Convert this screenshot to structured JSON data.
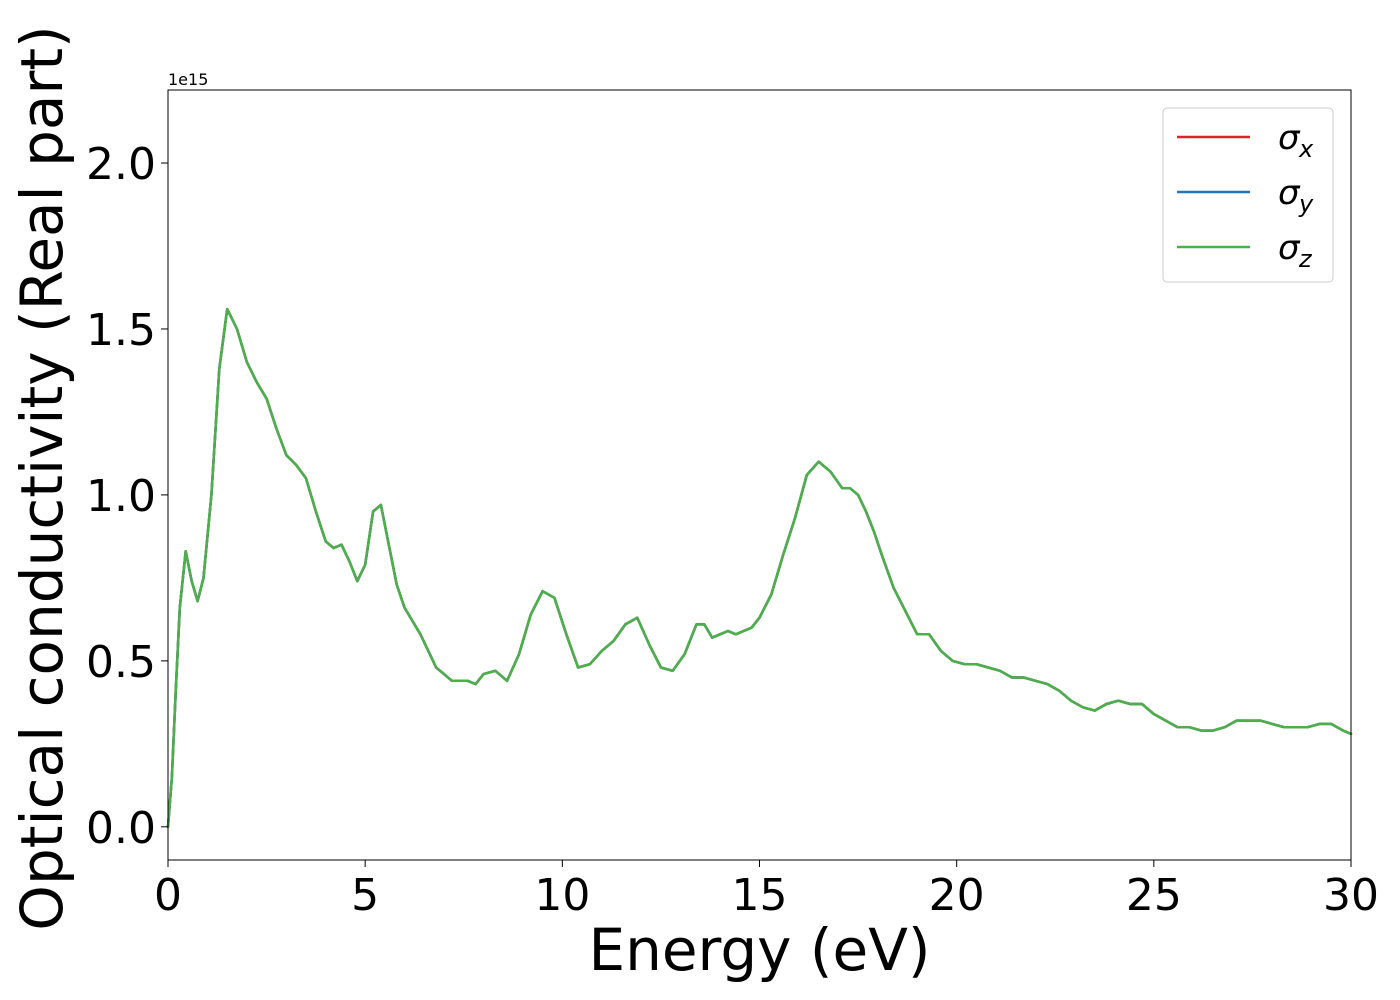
{
  "chart_data": {
    "type": "line",
    "title": "",
    "xlabel": "Energy (eV)",
    "ylabel": "Optical conductivity (Real part)",
    "y_offset_label": "1e15",
    "xlim": [
      0,
      30
    ],
    "ylim": [
      -0.1,
      2.22
    ],
    "xticks": [
      0,
      5,
      10,
      15,
      20,
      25,
      30
    ],
    "xtick_labels": [
      "0",
      "5",
      "10",
      "15",
      "20",
      "25",
      "30"
    ],
    "yticks": [
      0.0,
      0.5,
      1.0,
      1.5,
      2.0
    ],
    "ytick_labels": [
      "0.0",
      "0.5",
      "1.0",
      "1.5",
      "2.0"
    ],
    "grid": false,
    "legend_position": "top-right",
    "x": [
      0,
      0.1,
      0.2,
      0.3,
      0.45,
      0.6,
      0.75,
      0.9,
      1.1,
      1.3,
      1.5,
      1.75,
      2.0,
      2.25,
      2.5,
      2.75,
      3.0,
      3.25,
      3.5,
      3.75,
      4.0,
      4.2,
      4.4,
      4.6,
      4.8,
      5.0,
      5.2,
      5.4,
      5.6,
      5.8,
      6.0,
      6.2,
      6.4,
      6.6,
      6.8,
      7.0,
      7.2,
      7.4,
      7.6,
      7.8,
      8.0,
      8.3,
      8.6,
      8.9,
      9.2,
      9.5,
      9.8,
      10.1,
      10.4,
      10.7,
      11.0,
      11.3,
      11.6,
      11.9,
      12.2,
      12.5,
      12.8,
      13.1,
      13.4,
      13.6,
      13.8,
      14.0,
      14.2,
      14.4,
      14.6,
      14.8,
      15.0,
      15.3,
      15.6,
      15.9,
      16.2,
      16.5,
      16.8,
      17.1,
      17.3,
      17.5,
      17.7,
      17.9,
      18.1,
      18.4,
      18.7,
      19.0,
      19.3,
      19.6,
      19.9,
      20.2,
      20.5,
      20.8,
      21.1,
      21.4,
      21.7,
      22.0,
      22.3,
      22.6,
      22.9,
      23.2,
      23.5,
      23.8,
      24.1,
      24.4,
      24.7,
      25.0,
      25.3,
      25.6,
      25.9,
      26.2,
      26.5,
      26.8,
      27.1,
      27.4,
      27.7,
      28.0,
      28.3,
      28.6,
      28.9,
      29.2,
      29.5,
      29.8,
      30.0
    ],
    "series": [
      {
        "name": "σx",
        "symbol": "σ",
        "subscript": "x",
        "color": "#d62728",
        "values": [
          0.0,
          0.15,
          0.42,
          0.66,
          0.83,
          0.74,
          0.68,
          0.75,
          1.0,
          1.38,
          1.56,
          1.5,
          1.4,
          1.34,
          1.29,
          1.2,
          1.12,
          1.09,
          1.05,
          0.95,
          0.86,
          0.84,
          0.85,
          0.8,
          0.74,
          0.79,
          0.95,
          0.97,
          0.85,
          0.73,
          0.66,
          0.62,
          0.58,
          0.53,
          0.48,
          0.46,
          0.44,
          0.44,
          0.44,
          0.43,
          0.46,
          0.47,
          0.44,
          0.52,
          0.64,
          0.71,
          0.69,
          0.58,
          0.48,
          0.49,
          0.53,
          0.56,
          0.61,
          0.63,
          0.55,
          0.48,
          0.47,
          0.52,
          0.61,
          0.61,
          0.57,
          0.58,
          0.59,
          0.58,
          0.59,
          0.6,
          0.63,
          0.7,
          0.82,
          0.93,
          1.06,
          1.1,
          1.07,
          1.02,
          1.02,
          1.0,
          0.95,
          0.89,
          0.82,
          0.72,
          0.65,
          0.58,
          0.58,
          0.53,
          0.5,
          0.49,
          0.49,
          0.48,
          0.47,
          0.45,
          0.45,
          0.44,
          0.43,
          0.41,
          0.38,
          0.36,
          0.35,
          0.37,
          0.38,
          0.37,
          0.37,
          0.34,
          0.32,
          0.3,
          0.3,
          0.29,
          0.29,
          0.3,
          0.32,
          0.32,
          0.32,
          0.31,
          0.3,
          0.3,
          0.3,
          0.31,
          0.31,
          0.29,
          0.28
        ]
      },
      {
        "name": "σy",
        "symbol": "σ",
        "subscript": "y",
        "color": "#1f77b4",
        "values": [
          0.0,
          0.15,
          0.42,
          0.66,
          0.83,
          0.74,
          0.68,
          0.75,
          1.0,
          1.38,
          1.56,
          1.5,
          1.4,
          1.34,
          1.29,
          1.2,
          1.12,
          1.09,
          1.05,
          0.95,
          0.86,
          0.84,
          0.85,
          0.8,
          0.74,
          0.79,
          0.95,
          0.97,
          0.85,
          0.73,
          0.66,
          0.62,
          0.58,
          0.53,
          0.48,
          0.46,
          0.44,
          0.44,
          0.44,
          0.43,
          0.46,
          0.47,
          0.44,
          0.52,
          0.64,
          0.71,
          0.69,
          0.58,
          0.48,
          0.49,
          0.53,
          0.56,
          0.61,
          0.63,
          0.55,
          0.48,
          0.47,
          0.52,
          0.61,
          0.61,
          0.57,
          0.58,
          0.59,
          0.58,
          0.59,
          0.6,
          0.63,
          0.7,
          0.82,
          0.93,
          1.06,
          1.1,
          1.07,
          1.02,
          1.02,
          1.0,
          0.95,
          0.89,
          0.82,
          0.72,
          0.65,
          0.58,
          0.58,
          0.53,
          0.5,
          0.49,
          0.49,
          0.48,
          0.47,
          0.45,
          0.45,
          0.44,
          0.43,
          0.41,
          0.38,
          0.36,
          0.35,
          0.37,
          0.38,
          0.37,
          0.37,
          0.34,
          0.32,
          0.3,
          0.3,
          0.29,
          0.29,
          0.3,
          0.32,
          0.32,
          0.32,
          0.31,
          0.3,
          0.3,
          0.3,
          0.31,
          0.31,
          0.29,
          0.28
        ]
      },
      {
        "name": "σz",
        "symbol": "σ",
        "subscript": "z",
        "color": "#4daf4a",
        "values": [
          0.0,
          0.15,
          0.42,
          0.66,
          0.83,
          0.74,
          0.68,
          0.75,
          1.0,
          1.38,
          1.56,
          1.5,
          1.4,
          1.34,
          1.29,
          1.2,
          1.12,
          1.09,
          1.05,
          0.95,
          0.86,
          0.84,
          0.85,
          0.8,
          0.74,
          0.79,
          0.95,
          0.97,
          0.85,
          0.73,
          0.66,
          0.62,
          0.58,
          0.53,
          0.48,
          0.46,
          0.44,
          0.44,
          0.44,
          0.43,
          0.46,
          0.47,
          0.44,
          0.52,
          0.64,
          0.71,
          0.69,
          0.58,
          0.48,
          0.49,
          0.53,
          0.56,
          0.61,
          0.63,
          0.55,
          0.48,
          0.47,
          0.52,
          0.61,
          0.61,
          0.57,
          0.58,
          0.59,
          0.58,
          0.59,
          0.6,
          0.63,
          0.7,
          0.82,
          0.93,
          1.06,
          1.1,
          1.07,
          1.02,
          1.02,
          1.0,
          0.95,
          0.89,
          0.82,
          0.72,
          0.65,
          0.58,
          0.58,
          0.53,
          0.5,
          0.49,
          0.49,
          0.48,
          0.47,
          0.45,
          0.45,
          0.44,
          0.43,
          0.41,
          0.38,
          0.36,
          0.35,
          0.37,
          0.38,
          0.37,
          0.37,
          0.34,
          0.32,
          0.3,
          0.3,
          0.29,
          0.29,
          0.3,
          0.32,
          0.32,
          0.32,
          0.31,
          0.3,
          0.3,
          0.3,
          0.31,
          0.31,
          0.29,
          0.28
        ]
      }
    ]
  }
}
